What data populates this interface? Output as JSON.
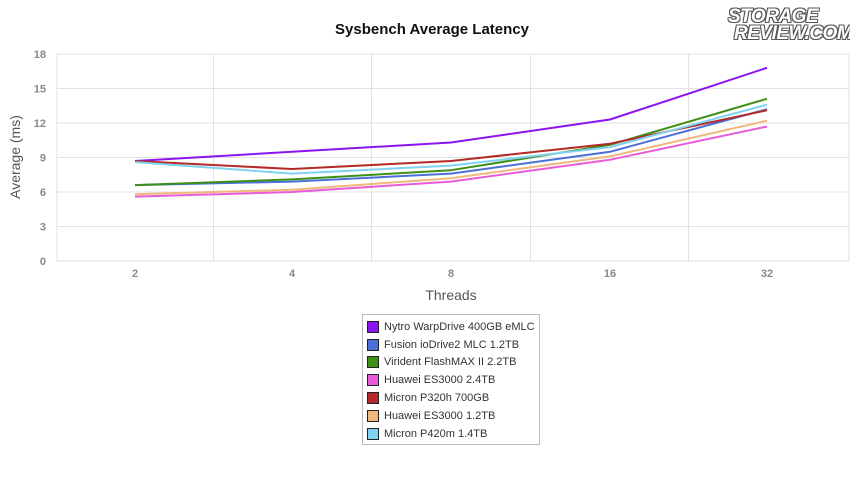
{
  "logo": {
    "line1": "STORAGE",
    "line2": "REVIEW.COM"
  },
  "chart_data": {
    "type": "line",
    "title": "Sysbench Average Latency",
    "xlabel": "Threads",
    "ylabel": "Average (ms)",
    "categories": [
      "2",
      "4",
      "8",
      "16",
      "32"
    ],
    "ylim": [
      0,
      18
    ],
    "yticks": [
      0,
      3,
      6,
      9,
      12,
      15,
      18
    ],
    "grid": true,
    "legend_position": "bottom",
    "series": [
      {
        "name": "Nytro WarpDrive 400GB eMLC",
        "color": "#8a14f0",
        "values": [
          8.7,
          9.5,
          10.3,
          12.3,
          16.8
        ]
      },
      {
        "name": "Fusion ioDrive2 MLC 1.2TB",
        "color": "#4a6fd8",
        "values": [
          6.6,
          6.9,
          7.6,
          9.5,
          13.2
        ]
      },
      {
        "name": "Virident FlashMAX II 2.2TB",
        "color": "#3f8f17",
        "values": [
          6.6,
          7.1,
          7.9,
          10.1,
          14.1
        ]
      },
      {
        "name": "Huawei ES3000 2.4TB",
        "color": "#e85cd8",
        "values": [
          5.6,
          6.0,
          6.9,
          8.8,
          11.7
        ]
      },
      {
        "name": "Micron P320h 700GB",
        "color": "#b42a26",
        "values": [
          8.7,
          8.0,
          8.7,
          10.2,
          13.1
        ]
      },
      {
        "name": "Huawei ES3000 1.2TB",
        "color": "#f0b87a",
        "values": [
          5.8,
          6.2,
          7.2,
          9.1,
          12.2
        ]
      },
      {
        "name": "Micron P420m 1.4TB",
        "color": "#7fd3f0",
        "values": [
          8.6,
          7.6,
          8.3,
          9.9,
          13.6
        ]
      }
    ]
  }
}
